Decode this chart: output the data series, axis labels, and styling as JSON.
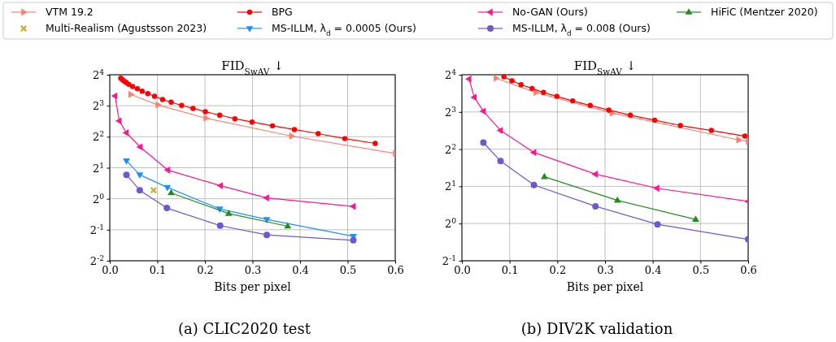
{
  "chart_data": [
    {
      "type": "line",
      "title": "FID$_{SwAV}$ ↓",
      "xlabel": "Bits per pixel",
      "log": true,
      "grid": true,
      "legend": "top",
      "xlim": [
        0,
        0.6
      ],
      "xticks": [
        {
          "value": 0,
          "label": "0.0"
        },
        0.1,
        0.2,
        0.3,
        0.4,
        0.5,
        0.6
      ],
      "ylim": [
        0.25,
        16
      ],
      "yticks": [
        {
          "value": 0.25,
          "label": "2$^{-2}$"
        },
        {
          "value": 0.5,
          "label": "2$^{-1}$"
        },
        {
          "value": 1,
          "label": "2$^{0}$"
        },
        {
          "value": 2,
          "label": "2$^{1}$"
        },
        {
          "value": 4,
          "label": "2$^{2}$"
        },
        {
          "value": 8,
          "label": "2$^{3}$"
        },
        {
          "value": 16,
          "label": "2$^{4}$"
        }
      ],
      "annotations": [
        "(a) CLIC2020 test"
      ],
      "series": [
        {
          "name": "VTM 19.2",
          "color": "#fa8072",
          "marker": "triangle-right",
          "x": [
            0.044,
            0.101,
            0.202,
            0.382,
            0.6
          ],
          "values": [
            10.3,
            8.16,
            6.06,
            4.06,
            2.75
          ]
        },
        {
          "name": "Multi-Realism (Agustsson 2023)",
          "color": "#daa520",
          "type": "scatter",
          "marker": "cross",
          "x": [
            0.092
          ],
          "values": [
            1.21
          ]
        },
        {
          "name": "BPG",
          "color": "#ff0000",
          "marker": "circle",
          "x": [
            0.023,
            0.027,
            0.031,
            0.035,
            0.04,
            0.048,
            0.058,
            0.068,
            0.08,
            0.094,
            0.111,
            0.129,
            0.151,
            0.175,
            0.201,
            0.231,
            0.263,
            0.299,
            0.342,
            0.388,
            0.438,
            0.494,
            0.558
          ],
          "values": [
            14.8,
            14.3,
            13.8,
            13.4,
            12.9,
            12.3,
            11.7,
            11.1,
            10.5,
            9.9,
            9.21,
            8.67,
            8.06,
            7.54,
            7.01,
            6.48,
            5.98,
            5.56,
            5.11,
            4.7,
            4.29,
            3.84,
            3.45
          ]
        },
        {
          "name": "MS-ILLM, λ$_{d}$ = 0.0005 (Ours)",
          "color": "#1e90ff",
          "marker": "triangle-down",
          "x": [
            0.035,
            0.063,
            0.121,
            0.231,
            0.33,
            0.512
          ],
          "values": [
            2.34,
            1.71,
            1.29,
            0.798,
            0.63,
            0.432
          ]
        },
        {
          "name": "No-GAN (Ours)",
          "color": "#ff1493",
          "marker": "triangle-left",
          "x": [
            0.011,
            0.02,
            0.035,
            0.064,
            0.122,
            0.233,
            0.33,
            0.512
          ],
          "values": [
            9.97,
            5.7,
            4.37,
            3.18,
            1.9,
            1.34,
            1.02,
            0.843
          ]
        },
        {
          "name": "MS-ILLM, λ$_{d}$ = 0.008 (Ours)",
          "color": "#6a5acd",
          "marker": "circle",
          "x": [
            0.035,
            0.063,
            0.12,
            0.232,
            0.33,
            0.512
          ],
          "values": [
            1.71,
            1.21,
            0.813,
            0.548,
            0.446,
            0.395
          ]
        },
        {
          "name": "HiFiC (Mentzer 2020)",
          "color": "#228b22",
          "marker": "triangle",
          "x": [
            0.129,
            0.25,
            0.374
          ],
          "values": [
            1.14,
            0.719,
            0.541
          ]
        }
      ]
    },
    {
      "type": "line",
      "title": "FID$_{SwAV}$ ↓",
      "xlabel": "Bits per pixel",
      "log": true,
      "grid": true,
      "xlim": [
        0,
        0.6
      ],
      "xticks": [
        {
          "value": 0,
          "label": "0.0"
        },
        0.1,
        0.2,
        0.3,
        0.4,
        0.5,
        0.6
      ],
      "ylim": [
        0.5,
        16
      ],
      "yticks": [
        {
          "value": 0.5,
          "label": "2$^{-1}$"
        },
        {
          "value": 1,
          "label": "2$^{0}$"
        },
        {
          "value": 2,
          "label": "2$^{1}$"
        },
        {
          "value": 4,
          "label": "2$^{2}$"
        },
        {
          "value": 8,
          "label": "2$^{3}$"
        },
        {
          "value": 16,
          "label": "2$^{4}$"
        }
      ],
      "annotations": [
        "(b) DIV2K validation"
      ],
      "series": [
        {
          "color": "#fa8072",
          "marker": "triangle-right",
          "x": [
            0.071,
            0.155,
            0.315,
            0.58,
            0.6
          ],
          "values": [
            15,
            11.5,
            7.84,
            4.75,
            4.61
          ]
        },
        {
          "color": "#ff0000",
          "marker": "circle",
          "x": [
            0.088,
            0.105,
            0.124,
            0.147,
            0.171,
            0.199,
            0.232,
            0.269,
            0.308,
            0.353,
            0.404,
            0.458,
            0.523,
            0.593
          ],
          "values": [
            15.4,
            14.3,
            13.3,
            12.4,
            11.5,
            10.7,
            9.84,
            9.03,
            8.29,
            7.53,
            6.87,
            6.21,
            5.67,
            5.1
          ]
        },
        {
          "color": "#ff1493",
          "marker": "triangle-left",
          "x": [
            0.015,
            0.026,
            0.045,
            0.081,
            0.151,
            0.28,
            0.409,
            0.6
          ],
          "values": [
            14.8,
            10.5,
            8.12,
            5.67,
            3.76,
            2.51,
            1.93,
            1.51
          ]
        },
        {
          "color": "#6a5acd",
          "marker": "circle",
          "x": [
            0.045,
            0.081,
            0.151,
            0.28,
            0.41,
            0.6
          ],
          "values": [
            4.52,
            3.2,
            2.05,
            1.38,
            0.985,
            0.746
          ]
        },
        {
          "color": "#228b22",
          "marker": "triangle",
          "x": [
            0.173,
            0.326,
            0.49
          ],
          "values": [
            2.39,
            1.54,
            1.08
          ]
        }
      ]
    }
  ]
}
